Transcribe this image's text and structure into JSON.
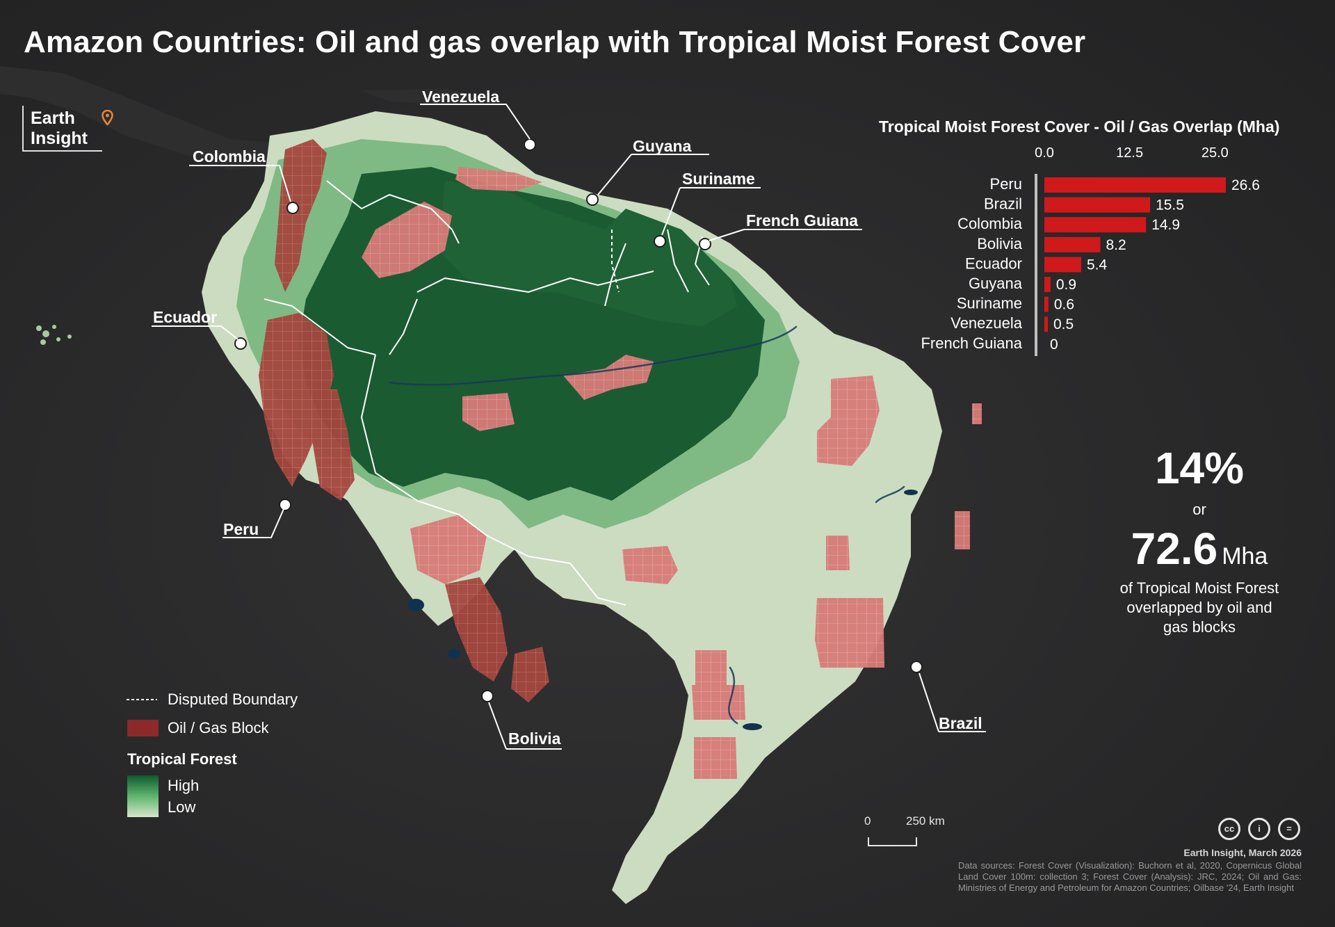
{
  "title": "Amazon Countries: Oil and gas overlap with Tropical Moist Forest Cover",
  "logo": {
    "line1": "Earth",
    "line2": "Insight",
    "pin_icon": "location-pin-icon",
    "accent": "#e8873a"
  },
  "country_labels": [
    {
      "id": "venezuela",
      "text": "Venezuela"
    },
    {
      "id": "colombia",
      "text": "Colombia"
    },
    {
      "id": "guyana",
      "text": "Guyana"
    },
    {
      "id": "suriname",
      "text": "Suriname"
    },
    {
      "id": "french-guiana",
      "text": "French Guiana"
    },
    {
      "id": "ecuador",
      "text": "Ecuador"
    },
    {
      "id": "peru",
      "text": "Peru"
    },
    {
      "id": "bolivia",
      "text": "Bolivia"
    },
    {
      "id": "brazil",
      "text": "Brazil"
    }
  ],
  "chart_data": {
    "type": "bar",
    "orientation": "horizontal",
    "title": "Tropical Moist Forest Cover - Oil / Gas Overlap (Mha)",
    "categories": [
      "Peru",
      "Brazil",
      "Colombia",
      "Bolivia",
      "Ecuador",
      "Guyana",
      "Suriname",
      "Venezuela",
      "French Guiana"
    ],
    "values": [
      26.6,
      15.5,
      14.9,
      8.2,
      5.4,
      0.9,
      0.6,
      0.5,
      0
    ],
    "value_labels": [
      "26.6",
      "15.5",
      "14.9",
      "8.2",
      "5.4",
      "0.9",
      "0.6",
      "0.5",
      "0"
    ],
    "x_ticks": [
      "0.0",
      "12.5",
      "25.0"
    ],
    "xlim": [
      0,
      26.6
    ],
    "bar_color": "#d0191b",
    "grid": false
  },
  "headline": {
    "percent": "14%",
    "or_text": "or",
    "amount": "72.6",
    "unit": "Mha",
    "description_lines": [
      "of Tropical Moist Forest",
      "overlapped by oil and",
      "gas blocks"
    ]
  },
  "legend": {
    "disputed_boundary": "Disputed Boundary",
    "oil_gas_block": "Oil / Gas Block",
    "oil_gas_color": "#8c2a2a",
    "tropical_forest_title": "Tropical Forest",
    "high_label": "High",
    "low_label": "Low",
    "forest_high_color": "#0f5a2e",
    "forest_low_color": "#d6e5cc"
  },
  "scale_bar": {
    "zero": "0",
    "distance": "250 km"
  },
  "credit": "Earth Insight,  March 2026",
  "data_sources": "Data sources: Forest Cover (Visualization): Buchorn et al, 2020, Copernicus Global Land Cover 100m: collection 3; Forest Cover (Analysis): JRC, 2024; Oil and Gas: Ministries of Energy and Petroleum for Amazon Countries; Oilbase '24, Earth Insight",
  "license_icons": [
    "cc-icon",
    "by-attribution-icon",
    "nd-no-derivatives-icon"
  ],
  "license_glyphs": [
    "cc",
    "i",
    "="
  ]
}
